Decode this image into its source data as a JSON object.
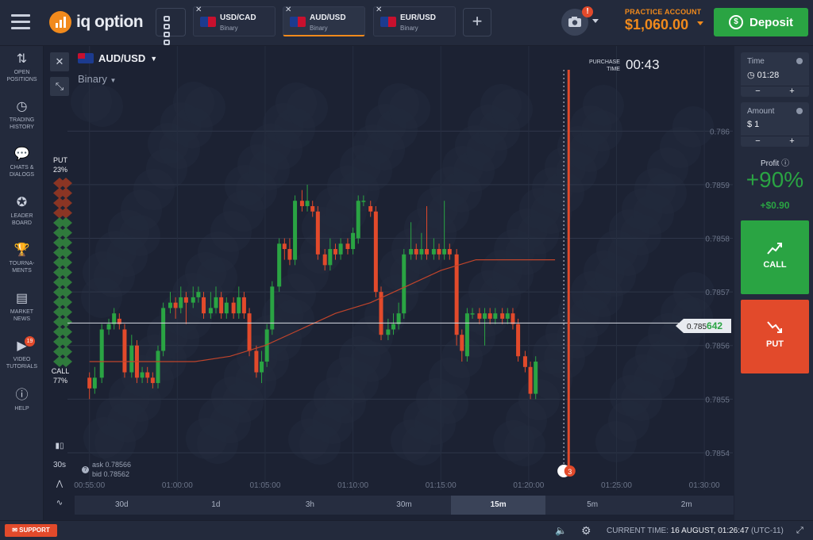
{
  "brand": {
    "name": "iq option"
  },
  "tabs": [
    {
      "pair": "USD/CAD",
      "type": "Binary",
      "active": false,
      "flag_colors": [
        "#1c3b8f",
        "#c8102e"
      ]
    },
    {
      "pair": "AUD/USD",
      "type": "Binary",
      "active": true,
      "flag_colors": [
        "#1c3b8f",
        "#c8102e"
      ]
    },
    {
      "pair": "EUR/USD",
      "type": "Binary",
      "active": false,
      "flag_colors": [
        "#1c3b8f",
        "#c8102e"
      ]
    }
  ],
  "account": {
    "label": "PRACTICE ACCOUNT",
    "balance": "$1,060.00",
    "deposit_label": "Deposit",
    "camera_badge": "!"
  },
  "sidebar": [
    {
      "label1": "OPEN",
      "label2": "POSITIONS",
      "icon": "arrows-icon"
    },
    {
      "label1": "TRADING",
      "label2": "HISTORY",
      "icon": "history-icon"
    },
    {
      "label1": "CHATS &",
      "label2": "DIALOGS",
      "icon": "chat-icon"
    },
    {
      "label1": "LEADER",
      "label2": "BOARD",
      "icon": "leaderboard-icon"
    },
    {
      "label1": "TOURNA-",
      "label2": "MENTS",
      "icon": "trophy-icon"
    },
    {
      "label1": "MARKET",
      "label2": "NEWS",
      "icon": "news-icon"
    },
    {
      "label1": "VIDEO",
      "label2": "TUTORIALS",
      "icon": "video-icon",
      "badge": "19"
    },
    {
      "label1": "",
      "label2": "HELP",
      "icon": "help-icon"
    }
  ],
  "asset": {
    "pair": "AUD/USD",
    "option_type": "Binary"
  },
  "purchase": {
    "label1": "PURCHASE",
    "label2": "TIME",
    "countdown": "00:43"
  },
  "sentiment": {
    "put_label": "PUT",
    "put_pct": "23%",
    "call_label": "CALL",
    "call_pct": "77%"
  },
  "quotes": {
    "ask": "ask 0.78566",
    "bid": "bid 0.78562"
  },
  "current_price": {
    "prefix": "0.785",
    "suffix": "642"
  },
  "timeframes": [
    {
      "label": "30d",
      "active": false
    },
    {
      "label": "1d",
      "active": false
    },
    {
      "label": "3h",
      "active": false
    },
    {
      "label": "30m",
      "active": false
    },
    {
      "label": "15m",
      "active": true
    },
    {
      "label": "5m",
      "active": false
    },
    {
      "label": "2m",
      "active": false
    }
  ],
  "candle_interval": "30s",
  "expiry_badge": "3",
  "panel": {
    "time_label": "Time",
    "time_value": "01:28",
    "amount_label": "Amount",
    "amount_value": "$  1",
    "minus": "−",
    "plus": "+",
    "profit_label": "Profit",
    "profit_pct": "+90%",
    "profit_usd": "+$0.90",
    "call_label": "CALL",
    "put_label": "PUT"
  },
  "footer": {
    "support": "SUPPORT",
    "time_label": "CURRENT TIME:",
    "time_value": "16 AUGUST, 01:26:47",
    "tz": "(UTC-11)"
  },
  "colors": {
    "accent": "#f18a1c",
    "up": "#2aa443",
    "down": "#e24a2b"
  },
  "chart_data": {
    "type": "candlestick",
    "y_ticks": [
      "0.786",
      "0.7859",
      "0.7858",
      "0.7857",
      "0.7856",
      "0.7855",
      "0.7854"
    ],
    "y_tick_values": [
      0.786,
      0.7859,
      0.7858,
      0.7857,
      0.7856,
      0.7855,
      0.7854
    ],
    "x_ticks": [
      "00:55:00",
      "01:00:00",
      "01:05:00",
      "01:10:00",
      "01:15:00",
      "01:20:00",
      "01:25:00",
      "01:30:00"
    ],
    "x_tick_minutes": [
      0,
      5,
      10,
      15,
      20,
      25,
      30,
      35
    ],
    "ylim": [
      0.78536,
      0.78607
    ],
    "candles": [
      {
        "t": 0.0,
        "o": 0.78554,
        "c": 0.78552,
        "h": 0.78555,
        "l": 0.7855
      },
      {
        "t": 0.3,
        "o": 0.78552,
        "c": 0.78554,
        "h": 0.78556,
        "l": 0.78551
      },
      {
        "t": 0.7,
        "o": 0.78554,
        "c": 0.78563,
        "h": 0.78564,
        "l": 0.78553
      },
      {
        "t": 1.1,
        "o": 0.78563,
        "c": 0.78564,
        "h": 0.78565,
        "l": 0.78562
      },
      {
        "t": 1.4,
        "o": 0.78564,
        "c": 0.78566,
        "h": 0.78567,
        "l": 0.78563
      },
      {
        "t": 1.7,
        "o": 0.78565,
        "c": 0.78564,
        "h": 0.78566,
        "l": 0.78563
      },
      {
        "t": 2.0,
        "o": 0.78563,
        "c": 0.78555,
        "h": 0.78564,
        "l": 0.78554
      },
      {
        "t": 2.4,
        "o": 0.78555,
        "c": 0.7856,
        "h": 0.78562,
        "l": 0.78554
      },
      {
        "t": 2.7,
        "o": 0.7856,
        "c": 0.78554,
        "h": 0.78561,
        "l": 0.78553
      },
      {
        "t": 3.0,
        "o": 0.78554,
        "c": 0.78555,
        "h": 0.78556,
        "l": 0.78553
      },
      {
        "t": 3.3,
        "o": 0.78555,
        "c": 0.78554,
        "h": 0.78556,
        "l": 0.78553
      },
      {
        "t": 3.6,
        "o": 0.78554,
        "c": 0.78553,
        "h": 0.78555,
        "l": 0.78552
      },
      {
        "t": 3.9,
        "o": 0.78553,
        "c": 0.78559,
        "h": 0.7856,
        "l": 0.78552
      },
      {
        "t": 4.2,
        "o": 0.78559,
        "c": 0.78567,
        "h": 0.78568,
        "l": 0.78558
      },
      {
        "t": 4.6,
        "o": 0.78567,
        "c": 0.78568,
        "h": 0.7857,
        "l": 0.78566
      },
      {
        "t": 4.9,
        "o": 0.78568,
        "c": 0.78567,
        "h": 0.78569,
        "l": 0.78565
      },
      {
        "t": 5.2,
        "o": 0.78567,
        "c": 0.78569,
        "h": 0.78571,
        "l": 0.78566
      },
      {
        "t": 5.5,
        "o": 0.78569,
        "c": 0.78568,
        "h": 0.7857,
        "l": 0.78564
      },
      {
        "t": 5.9,
        "o": 0.78568,
        "c": 0.78569,
        "h": 0.78571,
        "l": 0.78567
      },
      {
        "t": 6.2,
        "o": 0.78569,
        "c": 0.7857,
        "h": 0.78571,
        "l": 0.78568
      },
      {
        "t": 6.5,
        "o": 0.78569,
        "c": 0.78566,
        "h": 0.7857,
        "l": 0.78565
      },
      {
        "t": 6.9,
        "o": 0.78566,
        "c": 0.78567,
        "h": 0.7857,
        "l": 0.78565
      },
      {
        "t": 7.2,
        "o": 0.78567,
        "c": 0.78569,
        "h": 0.78571,
        "l": 0.78566
      },
      {
        "t": 7.5,
        "o": 0.78569,
        "c": 0.78566,
        "h": 0.7857,
        "l": 0.78565
      },
      {
        "t": 7.8,
        "o": 0.78566,
        "c": 0.78568,
        "h": 0.78569,
        "l": 0.78565
      },
      {
        "t": 8.2,
        "o": 0.78568,
        "c": 0.78566,
        "h": 0.78569,
        "l": 0.78565
      },
      {
        "t": 8.5,
        "o": 0.78566,
        "c": 0.78569,
        "h": 0.78571,
        "l": 0.78565
      },
      {
        "t": 8.8,
        "o": 0.78569,
        "c": 0.78566,
        "h": 0.7857,
        "l": 0.78565
      },
      {
        "t": 9.1,
        "o": 0.78566,
        "c": 0.78559,
        "h": 0.78567,
        "l": 0.78558
      },
      {
        "t": 9.5,
        "o": 0.78559,
        "c": 0.78555,
        "h": 0.7856,
        "l": 0.78554
      },
      {
        "t": 9.8,
        "o": 0.78555,
        "c": 0.78557,
        "h": 0.78559,
        "l": 0.78553
      },
      {
        "t": 10.1,
        "o": 0.78557,
        "c": 0.78563,
        "h": 0.78564,
        "l": 0.78556
      },
      {
        "t": 10.4,
        "o": 0.78563,
        "c": 0.78571,
        "h": 0.78572,
        "l": 0.78562
      },
      {
        "t": 10.8,
        "o": 0.78571,
        "c": 0.78579,
        "h": 0.7858,
        "l": 0.7857
      },
      {
        "t": 11.1,
        "o": 0.78579,
        "c": 0.78578,
        "h": 0.7858,
        "l": 0.78576
      },
      {
        "t": 11.4,
        "o": 0.78578,
        "c": 0.78576,
        "h": 0.7858,
        "l": 0.78575
      },
      {
        "t": 11.7,
        "o": 0.78576,
        "c": 0.78587,
        "h": 0.78588,
        "l": 0.78575
      },
      {
        "t": 12.1,
        "o": 0.78587,
        "c": 0.78586,
        "h": 0.78589,
        "l": 0.78585
      },
      {
        "t": 12.4,
        "o": 0.78586,
        "c": 0.78587,
        "h": 0.7859,
        "l": 0.78585
      },
      {
        "t": 12.7,
        "o": 0.78586,
        "c": 0.78585,
        "h": 0.78587,
        "l": 0.78584
      },
      {
        "t": 13.0,
        "o": 0.78585,
        "c": 0.78577,
        "h": 0.78586,
        "l": 0.78576
      },
      {
        "t": 13.4,
        "o": 0.78577,
        "c": 0.78575,
        "h": 0.78578,
        "l": 0.78574
      },
      {
        "t": 13.7,
        "o": 0.78575,
        "c": 0.78578,
        "h": 0.7858,
        "l": 0.78574
      },
      {
        "t": 14.0,
        "o": 0.78578,
        "c": 0.78577,
        "h": 0.78579,
        "l": 0.78576
      },
      {
        "t": 14.3,
        "o": 0.78577,
        "c": 0.78579,
        "h": 0.7858,
        "l": 0.78576
      },
      {
        "t": 14.7,
        "o": 0.78579,
        "c": 0.78578,
        "h": 0.7858,
        "l": 0.78577
      },
      {
        "t": 15.0,
        "o": 0.78578,
        "c": 0.78581,
        "h": 0.78582,
        "l": 0.78577
      },
      {
        "t": 15.3,
        "o": 0.7858,
        "c": 0.78587,
        "h": 0.78588,
        "l": 0.78579
      },
      {
        "t": 15.6,
        "o": 0.78587,
        "c": 0.78587,
        "h": 0.78588,
        "l": 0.78586
      },
      {
        "t": 16.0,
        "o": 0.78586,
        "c": 0.78585,
        "h": 0.78587,
        "l": 0.78584
      },
      {
        "t": 16.3,
        "o": 0.78585,
        "c": 0.7857,
        "h": 0.78586,
        "l": 0.78569
      },
      {
        "t": 16.6,
        "o": 0.7857,
        "c": 0.78562,
        "h": 0.78571,
        "l": 0.78561
      },
      {
        "t": 17.0,
        "o": 0.78562,
        "c": 0.78563,
        "h": 0.78565,
        "l": 0.78561
      },
      {
        "t": 17.3,
        "o": 0.78563,
        "c": 0.78564,
        "h": 0.78566,
        "l": 0.78562
      },
      {
        "t": 17.6,
        "o": 0.78564,
        "c": 0.78566,
        "h": 0.78568,
        "l": 0.78563
      },
      {
        "t": 17.9,
        "o": 0.78566,
        "c": 0.78577,
        "h": 0.78578,
        "l": 0.78565
      },
      {
        "t": 18.3,
        "o": 0.78577,
        "c": 0.78578,
        "h": 0.78583,
        "l": 0.78576
      },
      {
        "t": 18.6,
        "o": 0.78578,
        "c": 0.78577,
        "h": 0.78579,
        "l": 0.78576
      },
      {
        "t": 18.9,
        "o": 0.78577,
        "c": 0.78578,
        "h": 0.78581,
        "l": 0.78576
      },
      {
        "t": 19.2,
        "o": 0.78578,
        "c": 0.78577,
        "h": 0.78586,
        "l": 0.78576
      },
      {
        "t": 19.6,
        "o": 0.78577,
        "c": 0.78578,
        "h": 0.7858,
        "l": 0.78576
      },
      {
        "t": 19.9,
        "o": 0.78578,
        "c": 0.78577,
        "h": 0.78579,
        "l": 0.78576
      },
      {
        "t": 20.2,
        "o": 0.78577,
        "c": 0.78578,
        "h": 0.78587,
        "l": 0.78576
      },
      {
        "t": 20.5,
        "o": 0.78578,
        "c": 0.78577,
        "h": 0.78579,
        "l": 0.78576
      },
      {
        "t": 20.9,
        "o": 0.78577,
        "c": 0.78562,
        "h": 0.78578,
        "l": 0.7856
      },
      {
        "t": 21.2,
        "o": 0.78562,
        "c": 0.78559,
        "h": 0.78563,
        "l": 0.78557
      },
      {
        "t": 21.5,
        "o": 0.78558,
        "c": 0.78566,
        "h": 0.78567,
        "l": 0.78557
      },
      {
        "t": 21.8,
        "o": 0.78566,
        "c": 0.78566,
        "h": 0.78567,
        "l": 0.78565
      },
      {
        "t": 22.2,
        "o": 0.78566,
        "c": 0.78565,
        "h": 0.78567,
        "l": 0.78564
      },
      {
        "t": 22.5,
        "o": 0.78565,
        "c": 0.78566,
        "h": 0.78567,
        "l": 0.7856
      },
      {
        "t": 22.8,
        "o": 0.78566,
        "c": 0.78565,
        "h": 0.78567,
        "l": 0.78564
      },
      {
        "t": 23.1,
        "o": 0.78565,
        "c": 0.78566,
        "h": 0.78567,
        "l": 0.78564
      },
      {
        "t": 23.5,
        "o": 0.78566,
        "c": 0.78565,
        "h": 0.78567,
        "l": 0.78564
      },
      {
        "t": 23.8,
        "o": 0.78565,
        "c": 0.78566,
        "h": 0.78567,
        "l": 0.78564
      },
      {
        "t": 24.1,
        "o": 0.78566,
        "c": 0.78564,
        "h": 0.78567,
        "l": 0.78563
      },
      {
        "t": 24.4,
        "o": 0.78564,
        "c": 0.78558,
        "h": 0.78565,
        "l": 0.78557
      },
      {
        "t": 24.8,
        "o": 0.78558,
        "c": 0.78556,
        "h": 0.78559,
        "l": 0.78555
      },
      {
        "t": 25.1,
        "o": 0.78556,
        "c": 0.78551,
        "h": 0.78557,
        "l": 0.7855
      },
      {
        "t": 25.4,
        "o": 0.78551,
        "c": 0.78557,
        "h": 0.78558,
        "l": 0.7855
      }
    ],
    "moving_average": [
      {
        "t": 0.0,
        "v": 0.78557
      },
      {
        "t": 4.0,
        "v": 0.78557
      },
      {
        "t": 6.0,
        "v": 0.78557
      },
      {
        "t": 8.0,
        "v": 0.78558
      },
      {
        "t": 10.0,
        "v": 0.7856
      },
      {
        "t": 12.0,
        "v": 0.78563
      },
      {
        "t": 14.0,
        "v": 0.78566
      },
      {
        "t": 16.0,
        "v": 0.78568
      },
      {
        "t": 18.0,
        "v": 0.78571
      },
      {
        "t": 20.0,
        "v": 0.78574
      },
      {
        "t": 22.0,
        "v": 0.78576
      },
      {
        "t": 24.0,
        "v": 0.78576
      },
      {
        "t": 25.4,
        "v": 0.78576
      },
      {
        "t": 26.5,
        "v": 0.78576
      }
    ],
    "current_price": 0.785642,
    "purchase_line_t": 27.0,
    "expiry_line_t": 27.3
  }
}
